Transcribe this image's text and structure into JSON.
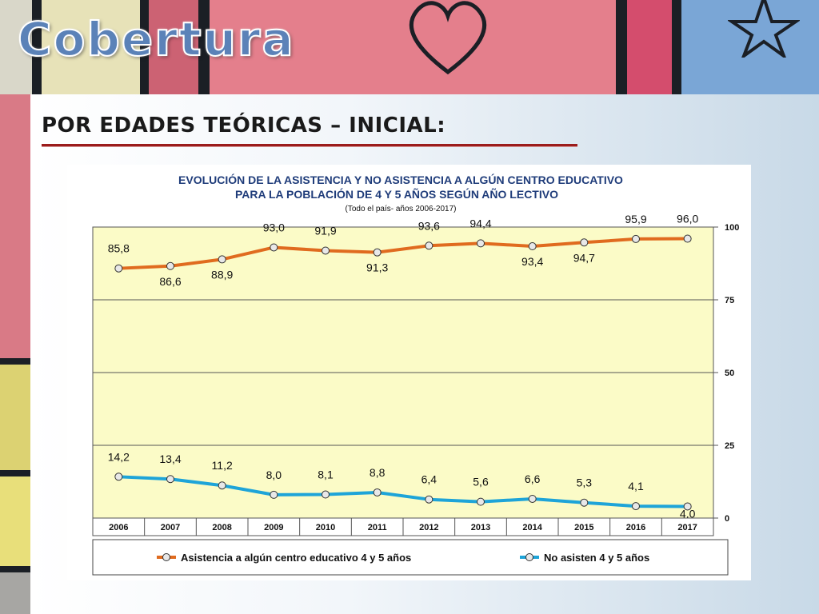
{
  "header": {
    "title": "Cobertura"
  },
  "section": {
    "heading": "POR EDADES TEÓRICAS – INICIAL:"
  },
  "colors": {
    "series_attend": "#e06b1f",
    "series_not_attend": "#1ea4d8",
    "plot_bg": "#fbfbc7",
    "title_color": "#1f3c7a",
    "heading_rule": "#9b1c1c"
  },
  "chart_data": {
    "type": "line",
    "title": "EVOLUCIÓN DE LA ASISTENCIA Y  NO ASISTENCIA A ALGÚN CENTRO EDUCATIVO",
    "title_line2": "PARA LA POBLACIÓN DE 4 Y 5 AÑOS SEGÚN AÑO LECTIVO",
    "subtitle": "(Todo el país- años 2006-2017)",
    "x": [
      "2006",
      "2007",
      "2008",
      "2009",
      "2010",
      "2011",
      "2012",
      "2013",
      "2014",
      "2015",
      "2016",
      "2017"
    ],
    "ylim": [
      0,
      100
    ],
    "y_ticks": [
      "0",
      "25",
      "50",
      "75",
      "100"
    ],
    "y_axis_side": "right",
    "grid": true,
    "legend": "bottom",
    "series": [
      {
        "name": "Asistencia a algún centro educativo  4 y 5 años",
        "values": [
          85.8,
          86.6,
          88.9,
          93.0,
          91.9,
          91.3,
          93.6,
          94.4,
          93.4,
          94.7,
          95.9,
          96.0
        ],
        "labels": [
          "85,8",
          "86,6",
          "88,9",
          "93,0",
          "91,9",
          "91,3",
          "93,6",
          "94,4",
          "93,4",
          "94,7",
          "95,9",
          "96,0"
        ]
      },
      {
        "name": "No asisten 4 y 5 años",
        "values": [
          14.2,
          13.4,
          11.2,
          8.0,
          8.1,
          8.8,
          6.4,
          5.6,
          6.6,
          5.3,
          4.1,
          4.0
        ],
        "labels": [
          "14,2",
          "13,4",
          "11,2",
          "8,0",
          "8,1",
          "8,8",
          "6,4",
          "5,6",
          "6,6",
          "5,3",
          "4,1",
          "4,0"
        ]
      }
    ]
  }
}
